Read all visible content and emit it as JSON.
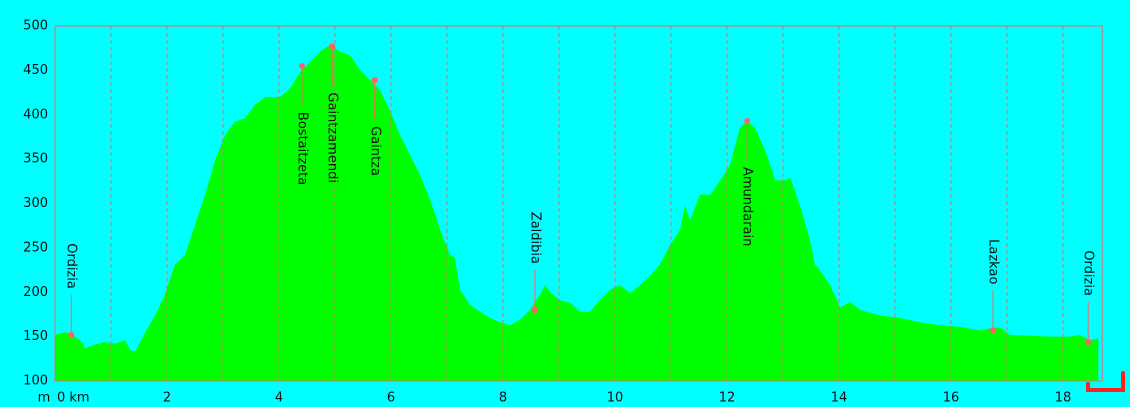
{
  "chart_data": {
    "type": "area",
    "color": "#00ff00",
    "marker_color": "#ff6060",
    "grid_color": "#e07070",
    "y_label": "m",
    "xlim": [
      0,
      18.7
    ],
    "ylim": [
      100,
      500
    ],
    "xticks": [
      {
        "value": 0,
        "label": "0 km"
      },
      2,
      4,
      6,
      8,
      10,
      12,
      14,
      16,
      18
    ],
    "yticks": [
      100,
      150,
      200,
      250,
      300,
      350,
      400,
      450,
      500
    ],
    "xgrid": [
      1,
      2,
      3,
      4,
      5,
      6,
      7,
      8,
      9,
      10,
      11,
      12,
      13,
      14,
      15,
      16,
      17,
      18
    ],
    "x": [
      0,
      0.18,
      0.3,
      0.45,
      0.54,
      0.71,
      0.89,
      1.07,
      1.25,
      1.34,
      1.43,
      1.63,
      1.79,
      1.96,
      2.14,
      2.32,
      2.5,
      2.68,
      2.86,
      3.04,
      3.21,
      3.39,
      3.57,
      3.75,
      4.02,
      4.2,
      4.38,
      4.55,
      4.73,
      4.91,
      5.09,
      5.27,
      5.45,
      5.63,
      5.8,
      5.98,
      6.16,
      6.34,
      6.52,
      6.7,
      6.88,
      7.05,
      7.14,
      7.23,
      7.41,
      7.59,
      7.77,
      7.95,
      8.13,
      8.3,
      8.48,
      8.66,
      8.75,
      8.84,
      9.02,
      9.2,
      9.38,
      9.55,
      9.73,
      9.91,
      10.09,
      10.27,
      10.45,
      10.63,
      10.8,
      10.98,
      11.16,
      11.25,
      11.34,
      11.52,
      11.7,
      11.88,
      12.05,
      12.23,
      12.36,
      12.5,
      12.68,
      12.86,
      13.04,
      13.13,
      13.3,
      13.48,
      13.57,
      13.66,
      13.84,
      14.02,
      14.2,
      14.38,
      14.55,
      14.73,
      15.09,
      15.45,
      15.8,
      16.16,
      16.52,
      16.75,
      16.88,
      17.05,
      17.41,
      17.77,
      18.13,
      18.3,
      18.48,
      18.63
    ],
    "values": [
      152,
      155,
      152,
      146,
      137,
      141,
      144,
      142,
      146,
      135,
      133,
      157,
      174,
      197,
      231,
      242,
      276,
      310,
      349,
      377,
      392,
      396,
      411,
      420,
      420,
      430,
      448,
      459,
      471,
      479,
      471,
      467,
      450,
      439,
      428,
      405,
      377,
      355,
      332,
      304,
      270,
      242,
      239,
      203,
      186,
      178,
      171,
      166,
      163,
      169,
      180,
      197,
      208,
      200,
      191,
      188,
      178,
      178,
      191,
      203,
      208,
      199,
      208,
      219,
      231,
      253,
      270,
      298,
      281,
      310,
      310,
      326,
      343,
      385,
      393,
      385,
      360,
      326,
      326,
      329,
      298,
      259,
      231,
      225,
      208,
      183,
      189,
      180,
      177,
      174,
      171,
      166,
      163,
      161,
      157,
      160,
      160,
      152,
      151,
      150,
      150,
      152,
      146,
      148
    ],
    "annotations": [
      {
        "text": "Ordizia",
        "x": 0.29,
        "y": 152
      },
      {
        "text": "Bostaitzeta",
        "x": 4.41,
        "y": 455
      },
      {
        "text": "Gaintzamendi",
        "x": 4.95,
        "y": 477
      },
      {
        "text": "Gaintza",
        "x": 5.71,
        "y": 439
      },
      {
        "text": "Zaldibia",
        "x": 8.57,
        "y": 180
      },
      {
        "text": "Amundarain",
        "x": 12.36,
        "y": 393
      },
      {
        "text": "Lazkao",
        "x": 16.75,
        "y": 157
      },
      {
        "text": "Ordizia",
        "x": 18.45,
        "y": 144
      }
    ]
  }
}
